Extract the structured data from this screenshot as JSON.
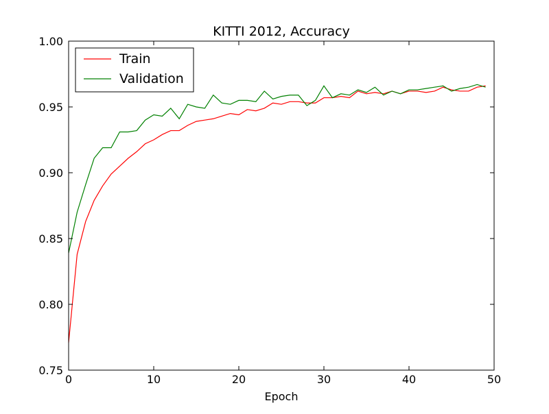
{
  "chart_data": {
    "type": "line",
    "title": "KITTI 2012, Accuracy",
    "xlabel": "Epoch",
    "ylabel": "",
    "xlim": [
      0,
      50
    ],
    "ylim": [
      0.75,
      1.0
    ],
    "xticks": [
      0,
      10,
      20,
      30,
      40,
      50
    ],
    "yticks": [
      0.75,
      0.8,
      0.85,
      0.9,
      0.95,
      1.0
    ],
    "xtick_labels": [
      "0",
      "10",
      "20",
      "30",
      "40",
      "50"
    ],
    "ytick_labels": [
      "0.75",
      "0.80",
      "0.85",
      "0.90",
      "0.95",
      "1.00"
    ],
    "grid": false,
    "legend_position": "top-left",
    "x": [
      0,
      1,
      2,
      3,
      4,
      5,
      6,
      7,
      8,
      9,
      10,
      11,
      12,
      13,
      14,
      15,
      16,
      17,
      18,
      19,
      20,
      21,
      22,
      23,
      24,
      25,
      26,
      27,
      28,
      29,
      30,
      31,
      32,
      33,
      34,
      35,
      36,
      37,
      38,
      39,
      40,
      41,
      42,
      43,
      44,
      45,
      46,
      47,
      48,
      49
    ],
    "series": [
      {
        "name": "Train",
        "color": "#ff0000",
        "values": [
          0.771,
          0.838,
          0.863,
          0.879,
          0.89,
          0.899,
          0.905,
          0.911,
          0.916,
          0.922,
          0.925,
          0.929,
          0.932,
          0.932,
          0.936,
          0.939,
          0.94,
          0.941,
          0.943,
          0.945,
          0.944,
          0.948,
          0.947,
          0.949,
          0.953,
          0.952,
          0.954,
          0.954,
          0.953,
          0.953,
          0.957,
          0.957,
          0.958,
          0.957,
          0.962,
          0.96,
          0.961,
          0.96,
          0.962,
          0.96,
          0.962,
          0.962,
          0.961,
          0.962,
          0.965,
          0.963,
          0.962,
          0.962,
          0.965,
          0.966
        ]
      },
      {
        "name": "Validation",
        "color": "#008000",
        "values": [
          0.839,
          0.87,
          0.891,
          0.911,
          0.919,
          0.919,
          0.931,
          0.931,
          0.932,
          0.94,
          0.944,
          0.943,
          0.949,
          0.941,
          0.952,
          0.95,
          0.949,
          0.959,
          0.953,
          0.952,
          0.955,
          0.955,
          0.954,
          0.962,
          0.956,
          0.958,
          0.959,
          0.959,
          0.951,
          0.955,
          0.966,
          0.957,
          0.96,
          0.959,
          0.963,
          0.961,
          0.965,
          0.959,
          0.962,
          0.96,
          0.963,
          0.963,
          0.964,
          0.965,
          0.966,
          0.962,
          0.964,
          0.965,
          0.967,
          0.965
        ]
      }
    ]
  }
}
